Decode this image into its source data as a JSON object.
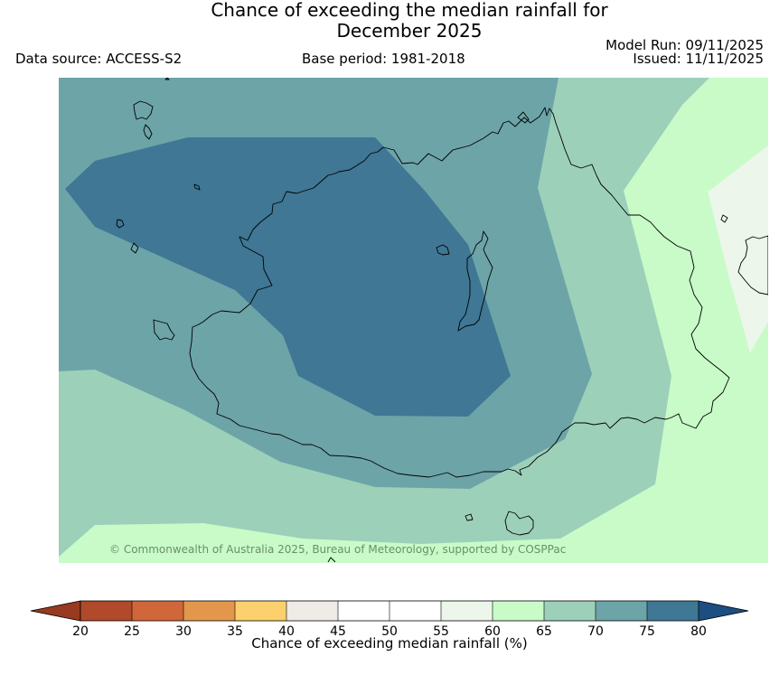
{
  "header": {
    "title_line1": "Chance of exceeding the median rainfall for",
    "title_line2": "December 2025",
    "data_source": "Data source: ACCESS-S2",
    "base_period": "Base period: 1981-2018",
    "model_run": "Model Run: 09/11/2025",
    "issued": "Issued: 11/11/2025"
  },
  "map": {
    "copyright": "© Commonwealth of Australia 2025, Bureau of Meteorology, supported by COSPPac",
    "zones": [
      {
        "name": "55-60",
        "color": "#ecf6ea"
      },
      {
        "name": "60-65",
        "color": "#c8fbc8"
      },
      {
        "name": "65-70",
        "color": "#9dd0b9"
      },
      {
        "name": "70-75",
        "color": "#6ca4a8"
      },
      {
        "name": "75-80",
        "color": "#3f7795"
      }
    ],
    "coast_color": "#000000"
  },
  "colorbar": {
    "label": "Chance of exceeding median rainfall (%)",
    "ticks": [
      "20",
      "25",
      "30",
      "35",
      "40",
      "45",
      "50",
      "55",
      "60",
      "65",
      "70",
      "75",
      "80"
    ],
    "colors": [
      "#b04a2a",
      "#d0673a",
      "#e2974c",
      "#fcd06c",
      "#efebe6",
      "#ffffff",
      "#ffffff",
      "#ecf6ea",
      "#c8fbc8",
      "#9dd0b9",
      "#6ca4a8",
      "#3f7795"
    ],
    "under_color": "#973a20",
    "over_color": "#1c4e80"
  }
}
